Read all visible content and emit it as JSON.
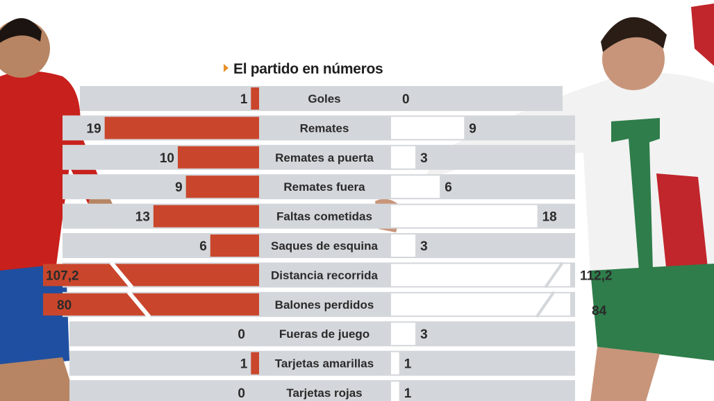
{
  "chart_data": {
    "type": "bar",
    "title": "El partido en números",
    "orientation": "horizontal-diverging",
    "categories": [
      "Goles",
      "Remates",
      "Remates a puerta",
      "Remates fuera",
      "Faltas cometidas",
      "Saques de esquina",
      "Distancia recorrida",
      "Balones perdidos",
      "Fueras de juego",
      "Tarjetas amarillas",
      "Tarjetas rojas"
    ],
    "left_labels": [
      "1",
      "19",
      "10",
      "9",
      "13",
      "6",
      "107,2",
      "80",
      "0",
      "1",
      "0"
    ],
    "right_labels": [
      "0",
      "9",
      "3",
      "6",
      "18",
      "3",
      "112,2",
      "84",
      "3",
      "1",
      "1"
    ],
    "series": [
      {
        "values": [
          1,
          19,
          10,
          9,
          13,
          6,
          107.2,
          80,
          0,
          1,
          0
        ],
        "color": "#c9462c"
      },
      {
        "values": [
          0,
          9,
          3,
          6,
          18,
          3,
          112.2,
          84,
          3,
          1,
          1
        ],
        "color": "#ffffff"
      }
    ],
    "broken_scale_categories": [
      "Distancia recorrida",
      "Balones perdidos"
    ],
    "colors": {
      "band": "#d3d6da",
      "left_bar": "#c9462c",
      "right_bar": "#ffffff",
      "title_arrow": "#e8912a"
    }
  }
}
